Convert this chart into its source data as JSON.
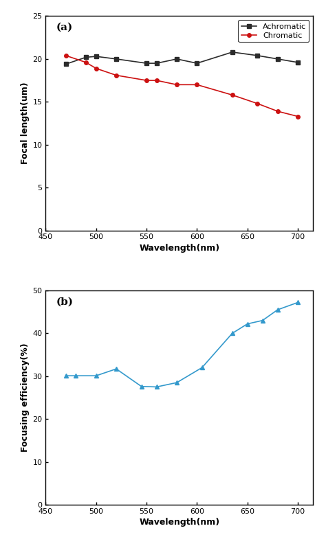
{
  "achromatic_x": [
    470,
    490,
    500,
    520,
    550,
    560,
    580,
    600,
    635,
    660,
    680,
    700
  ],
  "achromatic_y": [
    19.4,
    20.2,
    20.3,
    20.0,
    19.5,
    19.5,
    20.0,
    19.5,
    20.8,
    20.4,
    20.0,
    19.6
  ],
  "chromatic_x": [
    470,
    490,
    500,
    520,
    550,
    560,
    580,
    600,
    635,
    660,
    680,
    700
  ],
  "chromatic_y": [
    20.4,
    19.6,
    18.9,
    18.1,
    17.5,
    17.5,
    17.0,
    17.0,
    15.8,
    14.8,
    13.9,
    13.3
  ],
  "efficiency_x": [
    470,
    480,
    500,
    520,
    545,
    560,
    580,
    605,
    635,
    650,
    665,
    680,
    700
  ],
  "efficiency_y": [
    30.1,
    30.1,
    30.1,
    31.7,
    27.6,
    27.5,
    28.5,
    32.0,
    40.0,
    42.2,
    43.0,
    45.5,
    47.2
  ],
  "achromatic_color": "#2b2b2b",
  "chromatic_color": "#cc1111",
  "efficiency_color": "#3399cc",
  "panel_a_xlabel": "Wavelength(nm)",
  "panel_a_ylabel": "Focal length(um)",
  "panel_b_xlabel": "Wavelength(nm)",
  "panel_b_ylabel": "Focusing efficiency(%)",
  "panel_a_label": "(a)",
  "panel_b_label": "(b)",
  "achromatic_label": "Achromatic",
  "chromatic_label": "Chromatic",
  "xlim": [
    450,
    715
  ],
  "xticks": [
    450,
    500,
    550,
    600,
    650,
    700
  ],
  "ylim_a": [
    0,
    25
  ],
  "yticks_a": [
    0,
    5,
    10,
    15,
    20,
    25
  ],
  "ylim_b": [
    0,
    50
  ],
  "yticks_b": [
    0,
    10,
    20,
    30,
    40,
    50
  ]
}
